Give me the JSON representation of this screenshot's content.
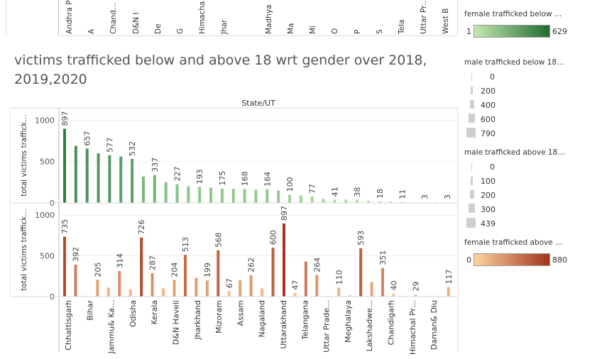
{
  "title": "victims trafficked below and above 18 wrt gender over 2018, 2019,2020",
  "top_strip": {
    "labels": [
      "Andhra P…",
      "A",
      "Chand…",
      "D&N I",
      "De",
      "G",
      "Himacha…",
      "Jhar",
      "",
      "Madhya",
      "Ma",
      "Mi",
      "O",
      "P",
      "S",
      "Tela",
      "Uttar Pr…",
      "West B"
    ]
  },
  "legends": {
    "green": {
      "title": "female trafficked below …",
      "min": "1",
      "max": "629",
      "color_low": "#c7e9b4",
      "color_high": "#1e6b2e"
    },
    "male_below": {
      "title": "male trafficked below 18…",
      "values": [
        "0",
        "200",
        "400",
        "600",
        "790"
      ]
    },
    "male_above": {
      "title": "male trafficked above 18…",
      "values": [
        "0",
        "100",
        "200",
        "300",
        "439"
      ]
    },
    "orange": {
      "title": "female trafficked above …",
      "min": "0",
      "max": "880",
      "color_low": "#fdd49e",
      "color_high": "#a2341c"
    }
  },
  "chart_data": [
    {
      "type": "bar",
      "header": "State/UT",
      "ylabel": "total victims traffick…",
      "ylim": [
        0,
        1150
      ],
      "yticks": [
        0,
        500,
        1000
      ],
      "color_scale": [
        "#b7e3a7",
        "#2e7d46"
      ],
      "values": [
        897,
        690,
        657,
        600,
        577,
        560,
        532,
        320,
        337,
        250,
        227,
        200,
        193,
        185,
        175,
        170,
        168,
        160,
        164,
        150,
        100,
        90,
        77,
        50,
        41,
        40,
        38,
        25,
        18,
        15,
        11,
        8,
        3,
        5,
        3
      ],
      "labels": [
        "897",
        "",
        "657",
        "",
        "577",
        "",
        "532",
        "",
        "337",
        "",
        "227",
        "",
        "193",
        "",
        "175",
        "",
        "168",
        "",
        "164",
        "",
        "100",
        "",
        "77",
        "",
        "41",
        "",
        "38",
        "",
        "18",
        "",
        "11",
        "",
        "3",
        "",
        "3"
      ]
    },
    {
      "type": "bar",
      "ylabel": "total victims traffick…",
      "ylim": [
        0,
        1150
      ],
      "yticks": [
        0,
        500,
        1000
      ],
      "color_scale": [
        "#fdd49e",
        "#a2341c"
      ],
      "values": [
        735,
        392,
        10,
        205,
        110,
        314,
        90,
        726,
        287,
        100,
        204,
        513,
        230,
        199,
        568,
        67,
        200,
        262,
        100,
        600,
        897,
        47,
        430,
        264,
        10,
        110,
        20,
        593,
        180,
        351,
        40,
        10,
        29,
        10,
        10,
        117
      ],
      "labels": [
        "735",
        "392",
        "",
        "205",
        "",
        "314",
        "",
        "726",
        "287",
        "",
        "204",
        "513",
        "",
        "199",
        "568",
        "67",
        "",
        "262",
        "",
        "600",
        "897",
        "47",
        "",
        "264",
        "",
        "110",
        "",
        "593",
        "",
        "351",
        "40",
        "",
        "29",
        "",
        "",
        "117"
      ],
      "categories": [
        "Chhattisgarh",
        "Bihar",
        "Jammu& Ka…",
        "Odisha",
        "Kerala",
        "D&N Haveli",
        "Jharkhand",
        "Mizoram",
        "Assam",
        "Nagaland",
        "Uttarakhand",
        "Telangana",
        "Uttar Prade…",
        "Meghalaya",
        "Lakshadwe…",
        "Chandigarh",
        "Himachal Pr…",
        "Daman& Diu"
      ]
    }
  ]
}
